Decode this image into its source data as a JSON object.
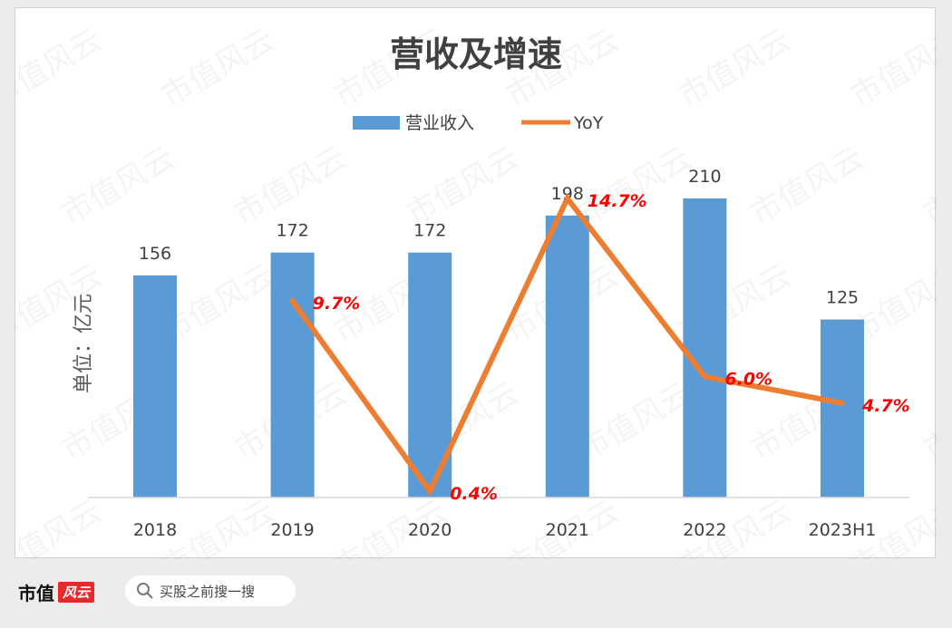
{
  "chart_data": {
    "type": "bar",
    "title": "营收及增速",
    "ylabel": "单位：亿元",
    "categories": [
      "2018",
      "2019",
      "2020",
      "2021",
      "2022",
      "2023H1"
    ],
    "series": [
      {
        "name": "营业收入",
        "type": "bar",
        "values": [
          156,
          172,
          172,
          198,
          210,
          125
        ],
        "labels": [
          "156",
          "172",
          "172",
          "198",
          "210",
          "125"
        ],
        "color": "#5b9bd5"
      },
      {
        "name": "YoY",
        "type": "line",
        "values": [
          null,
          9.7,
          0.4,
          14.7,
          6.0,
          4.7
        ],
        "labels": [
          null,
          "9.7%",
          "0.4%",
          "14.7%",
          "6.0%",
          "4.7%"
        ],
        "color": "#ed7d31",
        "label_color": "#ff0000"
      }
    ],
    "legend_position": "top",
    "grid": false
  },
  "watermark": "市值风云",
  "footer": {
    "brand": "市值",
    "brand_mark": "风云",
    "search_icon": "search-icon",
    "search_text": "买股之前搜一搜"
  }
}
